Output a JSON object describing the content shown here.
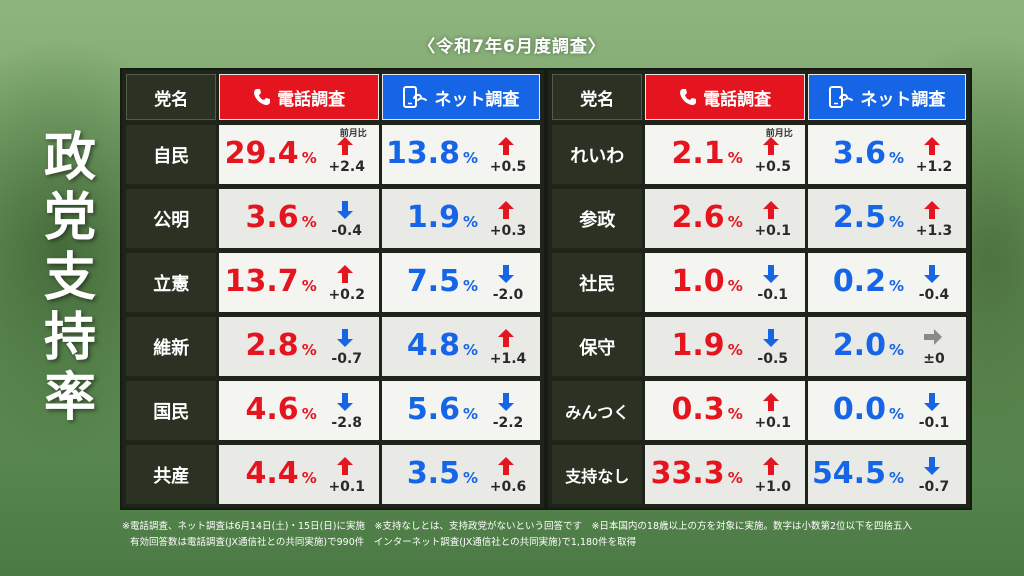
{
  "survey_date": "〈令和7年6月度調査〉",
  "title_chars": [
    "政",
    "党",
    "支",
    "持",
    "率"
  ],
  "headers": {
    "party": "党名",
    "phone": "電話調査",
    "net": "ネット調査",
    "prev_month": "前月比"
  },
  "unit": "%",
  "colors": {
    "phone": "#e5151f",
    "net": "#1565e6",
    "up": "#e5151f",
    "down": "#1565e6",
    "flat": "#8a8a8a"
  },
  "chart_data": {
    "type": "table",
    "columns": [
      "党名",
      "電話調査",
      "前月比",
      "ネット調査",
      "前月比"
    ],
    "rows": [
      {
        "party": "自民",
        "phone": 29.4,
        "phone_change": "+2.4",
        "phone_dir": "up",
        "net": 13.8,
        "net_change": "+0.5",
        "net_dir": "up"
      },
      {
        "party": "公明",
        "phone": 3.6,
        "phone_change": "-0.4",
        "phone_dir": "down",
        "net": 1.9,
        "net_change": "+0.3",
        "net_dir": "up"
      },
      {
        "party": "立憲",
        "phone": 13.7,
        "phone_change": "+0.2",
        "phone_dir": "up",
        "net": 7.5,
        "net_change": "-2.0",
        "net_dir": "down"
      },
      {
        "party": "維新",
        "phone": 2.8,
        "phone_change": "-0.7",
        "phone_dir": "down",
        "net": 4.8,
        "net_change": "+1.4",
        "net_dir": "up"
      },
      {
        "party": "国民",
        "phone": 4.6,
        "phone_change": "-2.8",
        "phone_dir": "down",
        "net": 5.6,
        "net_change": "-2.2",
        "net_dir": "down"
      },
      {
        "party": "共産",
        "phone": 4.4,
        "phone_change": "+0.1",
        "phone_dir": "up",
        "net": 3.5,
        "net_change": "+0.6",
        "net_dir": "up"
      },
      {
        "party": "れいわ",
        "phone": 2.1,
        "phone_change": "+0.5",
        "phone_dir": "up",
        "net": 3.6,
        "net_change": "+1.2",
        "net_dir": "up"
      },
      {
        "party": "参政",
        "phone": 2.6,
        "phone_change": "+0.1",
        "phone_dir": "up",
        "net": 2.5,
        "net_change": "+1.3",
        "net_dir": "up"
      },
      {
        "party": "社民",
        "phone": 1.0,
        "phone_change": "-0.1",
        "phone_dir": "down",
        "net": 0.2,
        "net_change": "-0.4",
        "net_dir": "down"
      },
      {
        "party": "保守",
        "phone": 1.9,
        "phone_change": "-0.5",
        "phone_dir": "down",
        "net": 2.0,
        "net_change": "±0",
        "net_dir": "flat"
      },
      {
        "party": "みんつく",
        "phone": 0.3,
        "phone_change": "+0.1",
        "phone_dir": "up",
        "net": 0.0,
        "net_change": "-0.1",
        "net_dir": "down"
      },
      {
        "party": "支持なし",
        "phone": 33.3,
        "phone_change": "+1.0",
        "phone_dir": "up",
        "net": 54.5,
        "net_change": "-0.7",
        "net_dir": "down"
      }
    ]
  },
  "footnotes": [
    "※電話調査、ネット調査は6月14日(土)・15日(日)に実施　※支持なしとは、支持政党がないという回答です　※日本国内の18歳以上の方を対象に実施。数字は小数第2位以下を四捨五入",
    "有効回答数は電話調査(JX通信社との共同実施)で990件　インターネット調査(JX通信社との共同実施)で1,180件を取得"
  ]
}
